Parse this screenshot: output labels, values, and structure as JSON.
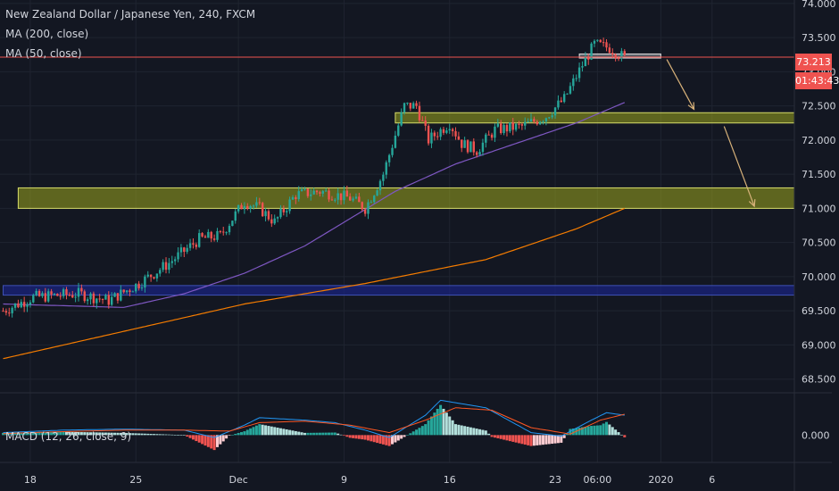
{
  "legend": {
    "symbol": "New Zealand Dollar / Japanese Yen, 240, FXCM",
    "ma200": "MA (200, close)",
    "ma50": "MA (50, close)",
    "macd": "MACD (12, 26, close, 9)"
  },
  "badges": {
    "last_price": "73.213",
    "countdown": "01:43:43"
  },
  "colors": {
    "background": "#131722",
    "grid": "#1f2430",
    "up": "#26a69a",
    "down": "#ef5350",
    "ma50": "#7e57c2",
    "ma200": "#f57c00",
    "macd": "#2196f3",
    "signal": "#ff5722",
    "zone_yellow": "#9da51e",
    "zone_blue": "#1a237e",
    "arrow": "#d8b27a"
  },
  "chart_data": {
    "type": "candlestick",
    "title": "New Zealand Dollar / Japanese Yen, 240, FXCM",
    "price_ticks": [
      "74.000",
      "73.500",
      "73.000",
      "72.500",
      "72.000",
      "71.500",
      "71.000",
      "70.500",
      "70.000",
      "69.500",
      "69.000",
      "68.500"
    ],
    "ylim": [
      68.3,
      74.05
    ],
    "time_ticks": [
      "18",
      "25",
      "Dec",
      "9",
      "16",
      "23",
      "06:00",
      "2020",
      "6"
    ],
    "time_tick_index": [
      9,
      44,
      78,
      113,
      148,
      183,
      197,
      218,
      235
    ],
    "bars": 206,
    "last_price": 73.213,
    "ma50": [
      [
        0,
        69.6
      ],
      [
        40,
        69.55
      ],
      [
        60,
        69.75
      ],
      [
        80,
        70.05
      ],
      [
        100,
        70.45
      ],
      [
        115,
        70.85
      ],
      [
        130,
        71.25
      ],
      [
        150,
        71.65
      ],
      [
        170,
        71.95
      ],
      [
        190,
        72.25
      ],
      [
        206,
        72.55
      ]
    ],
    "ma200": [
      [
        0,
        68.8
      ],
      [
        40,
        69.2
      ],
      [
        80,
        69.6
      ],
      [
        120,
        69.9
      ],
      [
        160,
        70.25
      ],
      [
        190,
        70.7
      ],
      [
        206,
        71.0
      ]
    ],
    "zones": [
      {
        "color": "yellow",
        "from_bar": 130,
        "to_bar": 265,
        "low": 72.25,
        "high": 72.4
      },
      {
        "color": "yellow",
        "from_bar": 5,
        "to_bar": 265,
        "low": 71.0,
        "high": 71.3
      },
      {
        "color": "blue",
        "from_bar": 0,
        "to_bar": 265,
        "low": 69.73,
        "high": 69.87
      },
      {
        "color": "grey",
        "from_bar": 191,
        "to_bar": 218,
        "low": 73.2,
        "high": 73.26
      }
    ],
    "arrows": [
      {
        "from": [
          220,
          73.18
        ],
        "to": [
          229,
          72.45
        ]
      },
      {
        "from": [
          239,
          72.2
        ],
        "to": [
          249,
          71.03
        ]
      }
    ],
    "macd": {
      "ylim": [
        -0.55,
        0.85
      ],
      "zero_label": "0.000",
      "macd_line": [
        [
          0,
          0.05
        ],
        [
          20,
          0.1
        ],
        [
          40,
          0.12
        ],
        [
          60,
          0.1
        ],
        [
          70,
          -0.05
        ],
        [
          80,
          0.2
        ],
        [
          85,
          0.35
        ],
        [
          100,
          0.3
        ],
        [
          110,
          0.25
        ],
        [
          120,
          0.1
        ],
        [
          128,
          -0.05
        ],
        [
          140,
          0.4
        ],
        [
          145,
          0.7
        ],
        [
          160,
          0.55
        ],
        [
          175,
          0.05
        ],
        [
          185,
          -0.02
        ],
        [
          195,
          0.3
        ],
        [
          200,
          0.45
        ],
        [
          206,
          0.4
        ]
      ],
      "signal_line": [
        [
          0,
          0.03
        ],
        [
          20,
          0.07
        ],
        [
          40,
          0.1
        ],
        [
          60,
          0.1
        ],
        [
          75,
          0.08
        ],
        [
          85,
          0.25
        ],
        [
          100,
          0.28
        ],
        [
          115,
          0.2
        ],
        [
          128,
          0.05
        ],
        [
          140,
          0.3
        ],
        [
          150,
          0.55
        ],
        [
          162,
          0.5
        ],
        [
          175,
          0.15
        ],
        [
          188,
          0.02
        ],
        [
          198,
          0.3
        ],
        [
          206,
          0.42
        ]
      ]
    }
  }
}
